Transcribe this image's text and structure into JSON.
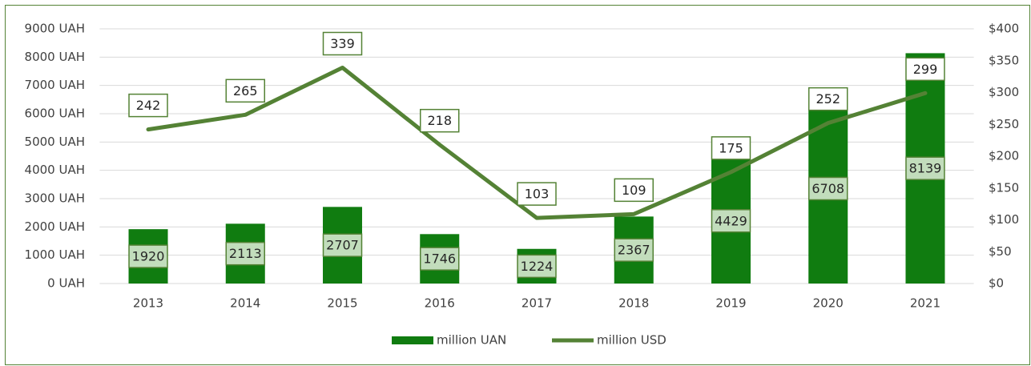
{
  "chart_data": {
    "type": "bar-line",
    "categories": [
      "2013",
      "2014",
      "2015",
      "2016",
      "2017",
      "2018",
      "2019",
      "2020",
      "2021"
    ],
    "series": [
      {
        "name": "million UAN",
        "type": "bar",
        "color": "#107c10",
        "values": [
          1920,
          2113,
          2707,
          1746,
          1224,
          2367,
          4429,
          6708,
          8139
        ]
      },
      {
        "name": "million USD",
        "type": "line",
        "color": "#548235",
        "axis": "y2",
        "values": [
          242,
          265,
          339,
          218,
          103,
          109,
          175,
          252,
          299
        ]
      }
    ],
    "ylim": [
      0,
      9000
    ],
    "yticks": [
      {
        "value": 0,
        "label": "0 UAH"
      },
      {
        "value": 1000,
        "label": "1000 UAH"
      },
      {
        "value": 2000,
        "label": "2000 UAH"
      },
      {
        "value": 3000,
        "label": "3000 UAH"
      },
      {
        "value": 4000,
        "label": "4000 UAH"
      },
      {
        "value": 5000,
        "label": "5000 UAH"
      },
      {
        "value": 6000,
        "label": "6000 UAH"
      },
      {
        "value": 7000,
        "label": "7000 UAH"
      },
      {
        "value": 8000,
        "label": "8000 UAH"
      },
      {
        "value": 9000,
        "label": "9000 UAH"
      }
    ],
    "y2lim": [
      0,
      400
    ],
    "y2ticks": [
      {
        "value": 0,
        "label": "$0"
      },
      {
        "value": 50,
        "label": "$50"
      },
      {
        "value": 100,
        "label": "$100"
      },
      {
        "value": 150,
        "label": "$150"
      },
      {
        "value": 200,
        "label": "$200"
      },
      {
        "value": 250,
        "label": "$250"
      },
      {
        "value": 300,
        "label": "$300"
      },
      {
        "value": 350,
        "label": "$350"
      },
      {
        "value": 400,
        "label": "$400"
      }
    ],
    "grid": true,
    "legend": "bottom"
  }
}
